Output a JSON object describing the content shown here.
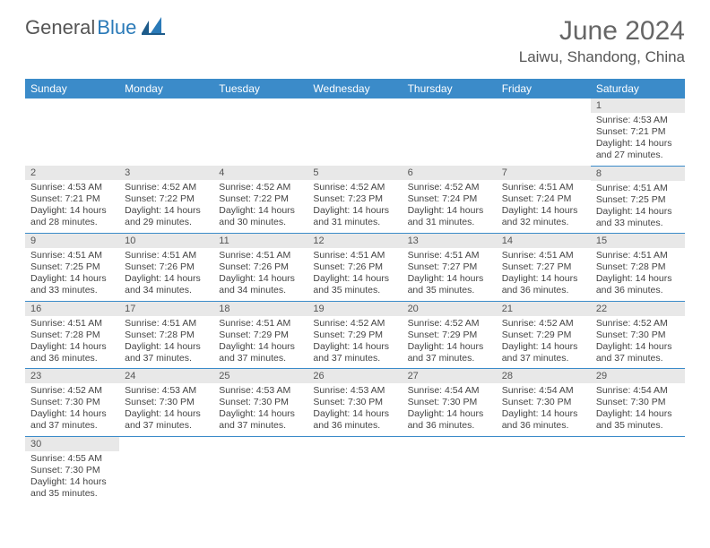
{
  "brand": {
    "part1": "General",
    "part2": "Blue",
    "logo_color": "#2a7ab8"
  },
  "title": "June 2024",
  "location": "Laiwu, Shandong, China",
  "colors": {
    "header_bg": "#3b8bc9",
    "header_text": "#ffffff",
    "daynum_bg": "#e8e8e8",
    "grid_line": "#3b8bc9",
    "text": "#444444"
  },
  "weekdays": [
    "Sunday",
    "Monday",
    "Tuesday",
    "Wednesday",
    "Thursday",
    "Friday",
    "Saturday"
  ],
  "layout": {
    "first_weekday_index": 6,
    "days_in_month": 30,
    "rows": 6,
    "cols": 7
  },
  "days": {
    "1": {
      "sunrise": "4:53 AM",
      "sunset": "7:21 PM",
      "daylight": "14 hours and 27 minutes."
    },
    "2": {
      "sunrise": "4:53 AM",
      "sunset": "7:21 PM",
      "daylight": "14 hours and 28 minutes."
    },
    "3": {
      "sunrise": "4:52 AM",
      "sunset": "7:22 PM",
      "daylight": "14 hours and 29 minutes."
    },
    "4": {
      "sunrise": "4:52 AM",
      "sunset": "7:22 PM",
      "daylight": "14 hours and 30 minutes."
    },
    "5": {
      "sunrise": "4:52 AM",
      "sunset": "7:23 PM",
      "daylight": "14 hours and 31 minutes."
    },
    "6": {
      "sunrise": "4:52 AM",
      "sunset": "7:24 PM",
      "daylight": "14 hours and 31 minutes."
    },
    "7": {
      "sunrise": "4:51 AM",
      "sunset": "7:24 PM",
      "daylight": "14 hours and 32 minutes."
    },
    "8": {
      "sunrise": "4:51 AM",
      "sunset": "7:25 PM",
      "daylight": "14 hours and 33 minutes."
    },
    "9": {
      "sunrise": "4:51 AM",
      "sunset": "7:25 PM",
      "daylight": "14 hours and 33 minutes."
    },
    "10": {
      "sunrise": "4:51 AM",
      "sunset": "7:26 PM",
      "daylight": "14 hours and 34 minutes."
    },
    "11": {
      "sunrise": "4:51 AM",
      "sunset": "7:26 PM",
      "daylight": "14 hours and 34 minutes."
    },
    "12": {
      "sunrise": "4:51 AM",
      "sunset": "7:26 PM",
      "daylight": "14 hours and 35 minutes."
    },
    "13": {
      "sunrise": "4:51 AM",
      "sunset": "7:27 PM",
      "daylight": "14 hours and 35 minutes."
    },
    "14": {
      "sunrise": "4:51 AM",
      "sunset": "7:27 PM",
      "daylight": "14 hours and 36 minutes."
    },
    "15": {
      "sunrise": "4:51 AM",
      "sunset": "7:28 PM",
      "daylight": "14 hours and 36 minutes."
    },
    "16": {
      "sunrise": "4:51 AM",
      "sunset": "7:28 PM",
      "daylight": "14 hours and 36 minutes."
    },
    "17": {
      "sunrise": "4:51 AM",
      "sunset": "7:28 PM",
      "daylight": "14 hours and 37 minutes."
    },
    "18": {
      "sunrise": "4:51 AM",
      "sunset": "7:29 PM",
      "daylight": "14 hours and 37 minutes."
    },
    "19": {
      "sunrise": "4:52 AM",
      "sunset": "7:29 PM",
      "daylight": "14 hours and 37 minutes."
    },
    "20": {
      "sunrise": "4:52 AM",
      "sunset": "7:29 PM",
      "daylight": "14 hours and 37 minutes."
    },
    "21": {
      "sunrise": "4:52 AM",
      "sunset": "7:29 PM",
      "daylight": "14 hours and 37 minutes."
    },
    "22": {
      "sunrise": "4:52 AM",
      "sunset": "7:30 PM",
      "daylight": "14 hours and 37 minutes."
    },
    "23": {
      "sunrise": "4:52 AM",
      "sunset": "7:30 PM",
      "daylight": "14 hours and 37 minutes."
    },
    "24": {
      "sunrise": "4:53 AM",
      "sunset": "7:30 PM",
      "daylight": "14 hours and 37 minutes."
    },
    "25": {
      "sunrise": "4:53 AM",
      "sunset": "7:30 PM",
      "daylight": "14 hours and 37 minutes."
    },
    "26": {
      "sunrise": "4:53 AM",
      "sunset": "7:30 PM",
      "daylight": "14 hours and 36 minutes."
    },
    "27": {
      "sunrise": "4:54 AM",
      "sunset": "7:30 PM",
      "daylight": "14 hours and 36 minutes."
    },
    "28": {
      "sunrise": "4:54 AM",
      "sunset": "7:30 PM",
      "daylight": "14 hours and 36 minutes."
    },
    "29": {
      "sunrise": "4:54 AM",
      "sunset": "7:30 PM",
      "daylight": "14 hours and 35 minutes."
    },
    "30": {
      "sunrise": "4:55 AM",
      "sunset": "7:30 PM",
      "daylight": "14 hours and 35 minutes."
    }
  },
  "labels": {
    "sunrise": "Sunrise:",
    "sunset": "Sunset:",
    "daylight": "Daylight:"
  }
}
